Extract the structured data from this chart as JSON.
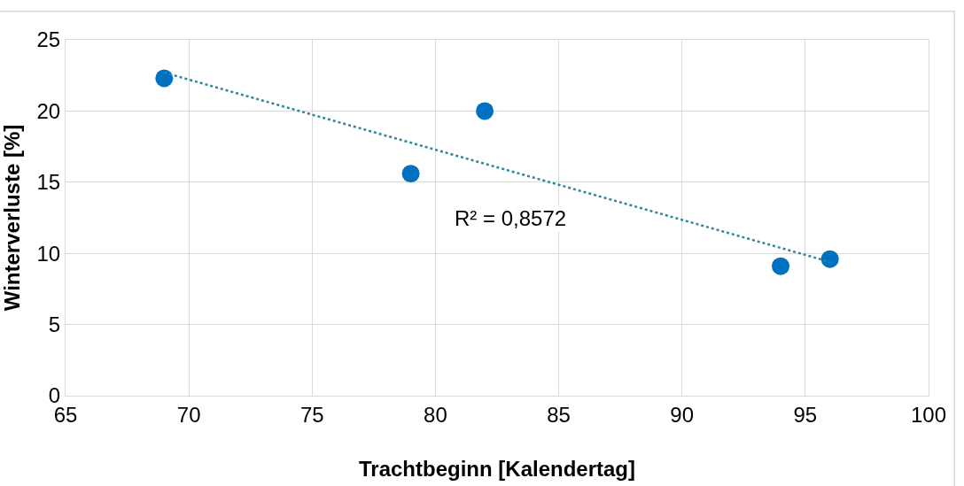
{
  "chart_data": {
    "type": "scatter",
    "xlabel": "Trachtbeginn [Kalendertag]",
    "ylabel": "Winterverluste [%]",
    "xlim": [
      65,
      100
    ],
    "xticks": [
      65,
      70,
      75,
      80,
      85,
      90,
      95,
      100
    ],
    "ylim": [
      0,
      25
    ],
    "yticks": [
      0,
      5,
      10,
      15,
      20,
      25
    ],
    "grid": true,
    "marker": "circle",
    "series": [
      {
        "color": "#0070c0",
        "x": [
          69,
          79,
          82,
          94,
          96
        ],
        "values": [
          22.3,
          15.6,
          20.0,
          9.1,
          9.6
        ]
      },
      {
        "type": "line",
        "color": "#31859c",
        "line_style": "dotted",
        "marker": "none",
        "x": [
          69,
          96
        ],
        "values": [
          22.7,
          9.4
        ]
      }
    ],
    "annotations": [
      "R² = 0,8572"
    ]
  }
}
